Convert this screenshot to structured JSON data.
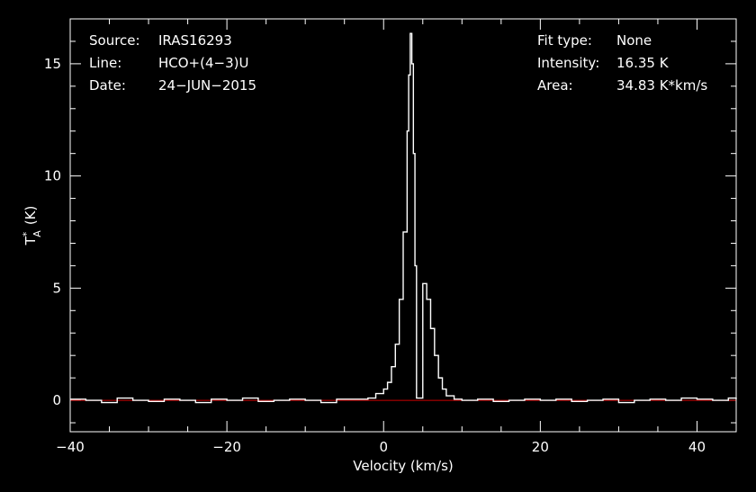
{
  "chart_data": {
    "type": "line",
    "info_left": [
      {
        "key": "Source:",
        "value": "IRAS16293"
      },
      {
        "key": "Line:",
        "value": "HCO+(4−3)U"
      },
      {
        "key": "Date:",
        "value": "24−JUN−2015"
      }
    ],
    "info_right": [
      {
        "key": "Fit type:",
        "value": "None"
      },
      {
        "key": "Intensity:",
        "value": "16.35 K"
      },
      {
        "key": "Area:",
        "value": "34.83 K*km/s"
      }
    ],
    "xlabel": "Velocity (km/s)",
    "ylabel_base": "T",
    "ylabel_sup": "*",
    "ylabel_sub": "A",
    "ylabel_unit": "(K)",
    "xlim": [
      -40,
      45
    ],
    "ylim": [
      -1.4,
      17.0
    ],
    "xticks": [
      -40,
      -20,
      0,
      20,
      40
    ],
    "xtick_labels": [
      "−40",
      "−20",
      "0",
      "20",
      "40"
    ],
    "yticks": [
      0,
      5,
      10,
      15
    ],
    "ytick_labels": [
      "0",
      "5",
      "10",
      "15"
    ],
    "baseline": 0,
    "colors": {
      "background": "#000000",
      "axes": "#ffffff",
      "spectrum": "#ffffff",
      "baseline": "#cc0000"
    },
    "series": [
      {
        "x": [
          -40,
          -38,
          -36,
          -34,
          -32,
          -30,
          -28,
          -26,
          -24,
          -22,
          -20,
          -18,
          -16,
          -14,
          -12,
          -10,
          -8,
          -6,
          -4,
          -2,
          -1,
          0,
          0.5,
          1,
          1.5,
          2,
          2.5,
          3,
          3.2,
          3.4,
          3.6,
          3.8,
          4.0,
          4.2,
          4.5,
          5.0,
          5.5,
          6.0,
          6.5,
          7.0,
          7.5,
          8.0,
          9,
          10,
          12,
          14,
          16,
          18,
          20,
          22,
          24,
          26,
          28,
          30,
          32,
          34,
          36,
          38,
          40,
          42,
          44,
          45
        ],
        "y": [
          0.05,
          0.0,
          -0.1,
          0.1,
          0.0,
          -0.05,
          0.05,
          0.0,
          -0.1,
          0.05,
          0.0,
          0.1,
          -0.05,
          0.0,
          0.05,
          0.0,
          -0.1,
          0.05,
          0.05,
          0.1,
          0.3,
          0.5,
          0.8,
          1.5,
          2.5,
          4.5,
          7.5,
          12.0,
          14.5,
          16.35,
          15.0,
          11.0,
          6.0,
          0.1,
          0.1,
          5.2,
          4.5,
          3.2,
          2.0,
          1.0,
          0.5,
          0.2,
          0.05,
          0.0,
          0.05,
          -0.05,
          0.0,
          0.05,
          0.0,
          0.05,
          -0.05,
          0.0,
          0.05,
          -0.1,
          0.0,
          0.05,
          0.0,
          0.1,
          0.05,
          0.0,
          0.1,
          0.05
        ]
      }
    ]
  }
}
